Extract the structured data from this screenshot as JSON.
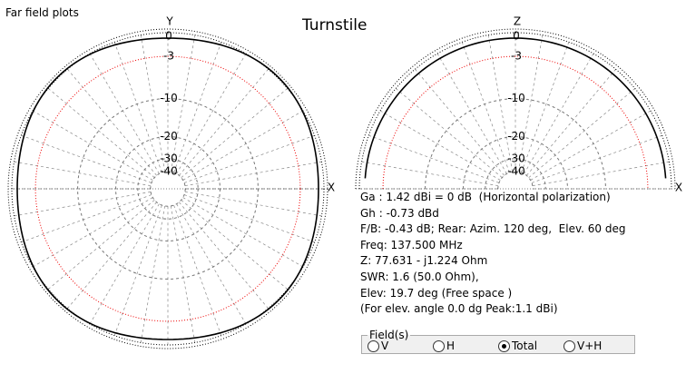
{
  "header": {
    "caption": "Far field plots",
    "title": "Turnstile"
  },
  "rings": [
    0,
    -3,
    -10,
    -20,
    -30,
    -40
  ],
  "horizontal_plot": {
    "top_label": "Y",
    "right_label": "X"
  },
  "vertical_plot": {
    "top_label": "Z",
    "right_label": "X"
  },
  "info": [
    "Ga : 1.42 dBi = 0 dB  (Horizontal polarization)",
    "Gh : -0.73 dBd",
    "F/B: -0.43 dB; Rear: Azim. 120 deg,  Elev. 60 deg",
    "Freq: 137.500 MHz",
    "Z: 77.631 - j1.224 Ohm",
    "SWR: 1.6 (50.0 Ohm),",
    "Elev: 19.7 deg (Free space )",
    "(For elev. angle 0.0 dg Peak:1.1 dBi)"
  ],
  "fields": {
    "legend": "Field(s)",
    "options": [
      "V",
      "H",
      "Total",
      "V+H"
    ],
    "selected": 2
  }
}
